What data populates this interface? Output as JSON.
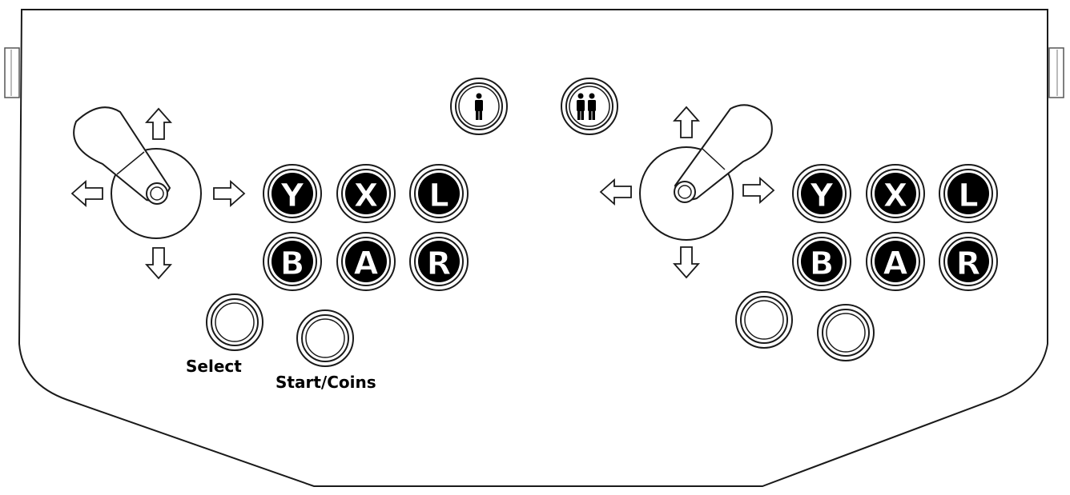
{
  "panel": {
    "colors": {
      "outline": "#1a1a1a",
      "fill": "#ffffff",
      "button_fill": "#000000",
      "letter": "#ffffff"
    },
    "top_buttons": [
      {
        "name": "player-1-start-button",
        "icon": "one-player-icon"
      },
      {
        "name": "player-2-start-button",
        "icon": "two-players-icon"
      }
    ],
    "player_1": {
      "buttons_top_row": [
        "Y",
        "X",
        "L"
      ],
      "buttons_bottom_row": [
        "B",
        "A",
        "R"
      ],
      "select_label": "Select",
      "start_label": "Start/Coins"
    },
    "player_2": {
      "buttons_top_row": [
        "Y",
        "X",
        "L"
      ],
      "buttons_bottom_row": [
        "B",
        "A",
        "R"
      ]
    }
  }
}
